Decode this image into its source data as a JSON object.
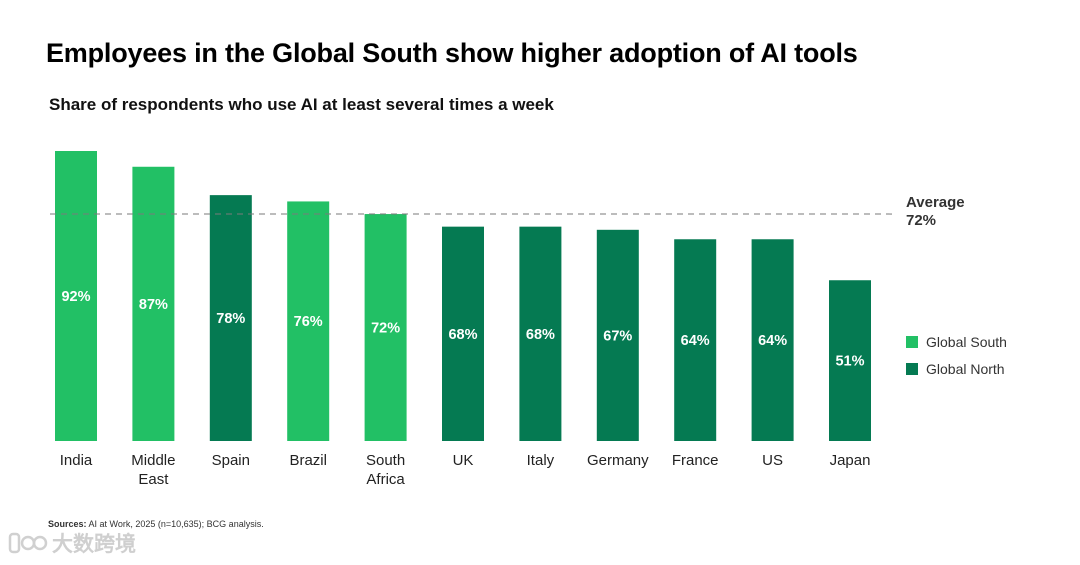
{
  "title": "Employees in the Global South show higher adoption of AI tools",
  "subtitle": "Share of respondents who use AI at least several times a week",
  "colors": {
    "global_south": "#22c065",
    "global_north": "#057a52",
    "average_line": "#7a7a7a"
  },
  "chart_data": {
    "type": "bar",
    "categories": [
      "India",
      "Middle East",
      "Spain",
      "Brazil",
      "South Africa",
      "UK",
      "Italy",
      "Germany",
      "France",
      "US",
      "Japan"
    ],
    "category_lines": [
      [
        "India"
      ],
      [
        "Middle",
        "East"
      ],
      [
        "Spain"
      ],
      [
        "Brazil"
      ],
      [
        "South",
        "Africa"
      ],
      [
        "UK"
      ],
      [
        "Italy"
      ],
      [
        "Germany"
      ],
      [
        "France"
      ],
      [
        "US"
      ],
      [
        "Japan"
      ]
    ],
    "values": [
      92,
      87,
      78,
      76,
      72,
      68,
      68,
      67,
      64,
      64,
      51
    ],
    "value_labels": [
      "92%",
      "87%",
      "78%",
      "76%",
      "72%",
      "68%",
      "68%",
      "67%",
      "64%",
      "64%",
      "51%"
    ],
    "groups": [
      "Global South",
      "Global South",
      "Global North",
      "Global South",
      "Global South",
      "Global North",
      "Global North",
      "Global North",
      "Global North",
      "Global North",
      "Global North"
    ],
    "ylim": [
      0,
      100
    ],
    "average": {
      "label": "Average",
      "value": 72,
      "value_label": "72%"
    },
    "legend": [
      "Global South",
      "Global North"
    ],
    "legend_position": "right",
    "grid": false
  },
  "source": {
    "label": "Sources:",
    "text": "AI at Work, 2025 (n=10,635); BCG analysis."
  },
  "watermark": {
    "text": "大数跨境"
  }
}
